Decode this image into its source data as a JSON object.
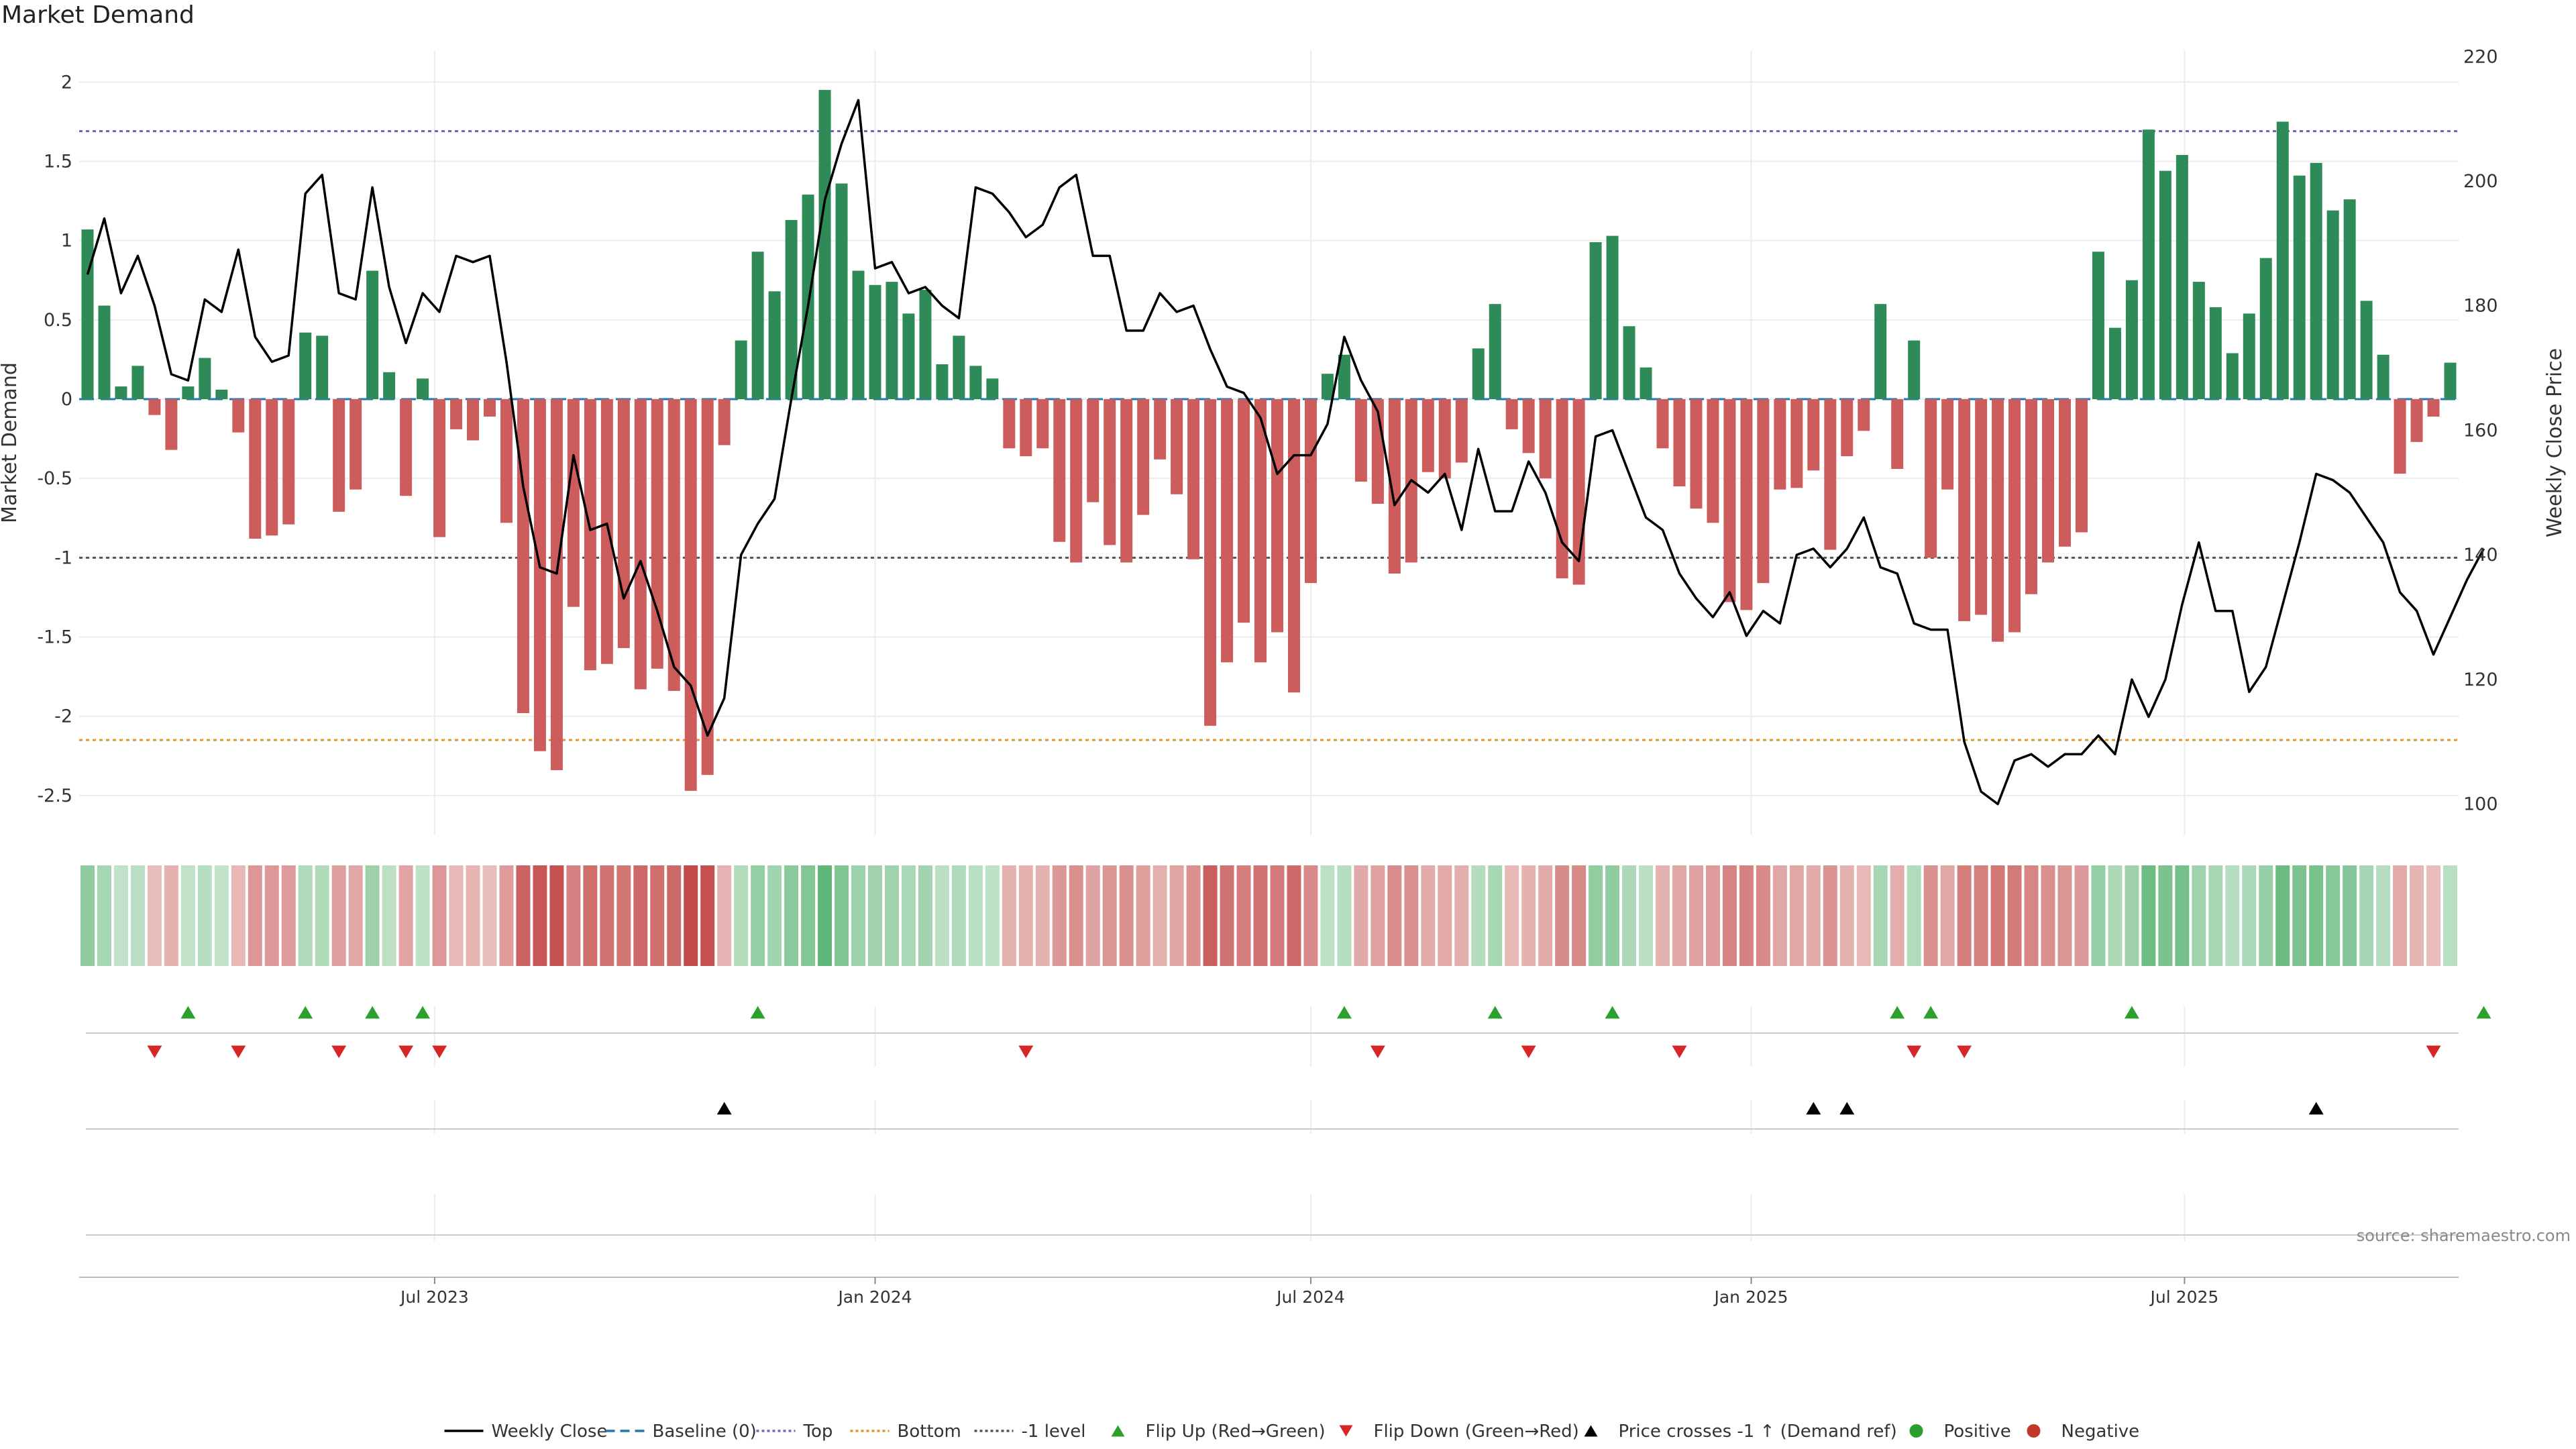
{
  "chart_data": {
    "type": "bar",
    "title": "Market Demand",
    "ylabel_left": "Market Demand",
    "ylabel_right": "Weekly Close Price",
    "ylim_left": [
      -2.75,
      2.2
    ],
    "ylim_right": [
      95,
      221
    ],
    "yticks_left": [
      2,
      1.5,
      1,
      0.5,
      0,
      -0.5,
      -1,
      -1.5,
      -2,
      -2.5
    ],
    "yticks_left_labels": [
      "2",
      "1.5",
      "1",
      "0.5",
      "0",
      "-0.5",
      "-1",
      "-1.5",
      "-2",
      "-2.5"
    ],
    "yticks_right": [
      220,
      200,
      180,
      160,
      140,
      120,
      100
    ],
    "yticks_right_labels": [
      "220",
      "200",
      "180",
      "160",
      "140",
      "120",
      "100"
    ],
    "x_start": "2023-02-06",
    "x_step_days": 7,
    "xticks": [
      {
        "date": "2023-07-01",
        "label": "Jul 2023"
      },
      {
        "date": "2024-01-01",
        "label": "Jan 2024"
      },
      {
        "date": "2024-07-01",
        "label": "Jul 2024"
      },
      {
        "date": "2025-01-01",
        "label": "Jan 2025"
      },
      {
        "date": "2025-07-01",
        "label": "Jul 2025"
      }
    ],
    "reference_lines": {
      "top": 1.69,
      "bottom": -2.15,
      "minus_one": -1.0,
      "baseline": 0
    },
    "demand": [
      1.07,
      0.59,
      0.08,
      0.21,
      -0.1,
      -0.32,
      0.08,
      0.26,
      0.06,
      -0.21,
      -0.88,
      -0.86,
      -0.79,
      0.42,
      0.4,
      -0.71,
      -0.57,
      0.81,
      0.17,
      -0.61,
      0.13,
      -0.87,
      -0.19,
      -0.26,
      -0.11,
      -0.78,
      -1.98,
      -2.22,
      -2.34,
      -1.31,
      -1.71,
      -1.67,
      -1.57,
      -1.83,
      -1.7,
      -1.84,
      -2.47,
      -2.37,
      -0.29,
      0.37,
      0.93,
      0.68,
      1.13,
      1.29,
      1.95,
      1.36,
      0.81,
      0.72,
      0.74,
      0.54,
      0.69,
      0.22,
      0.4,
      0.21,
      0.13,
      -0.31,
      -0.36,
      -0.31,
      -0.9,
      -1.03,
      -0.65,
      -0.92,
      -1.03,
      -0.73,
      -0.38,
      -0.6,
      -1.01,
      -2.06,
      -1.66,
      -1.41,
      -1.66,
      -1.47,
      -1.85,
      -1.16,
      0.16,
      0.28,
      -0.52,
      -0.66,
      -1.1,
      -1.03,
      -0.46,
      -0.5,
      -0.4,
      0.32,
      0.6,
      -0.19,
      -0.34,
      -0.5,
      -1.13,
      -1.17,
      0.99,
      1.03,
      0.46,
      0.2,
      -0.31,
      -0.55,
      -0.69,
      -0.78,
      -1.28,
      -1.33,
      -1.16,
      -0.57,
      -0.56,
      -0.45,
      -0.95,
      -0.36,
      -0.2,
      0.6,
      -0.44,
      0.37,
      -1.0,
      -0.57,
      -1.4,
      -1.36,
      -1.53,
      -1.47,
      -1.23,
      -1.03,
      -0.93,
      -0.84,
      0.93,
      0.45,
      0.75,
      1.7,
      1.44,
      1.54,
      0.74,
      0.58,
      0.29,
      0.54,
      0.89,
      1.75,
      1.41,
      1.49,
      1.19,
      1.26,
      0.62,
      0.28,
      -0.47,
      -0.27,
      -0.11,
      0.23
    ],
    "weekly_close": [
      185,
      194,
      182,
      188,
      180,
      169,
      168,
      181,
      179,
      189,
      175,
      171,
      172,
      198,
      201,
      182,
      181,
      199,
      183,
      174,
      182,
      179,
      188,
      187,
      188,
      171,
      151,
      138,
      137,
      156,
      144,
      145,
      133,
      139,
      131,
      122,
      119,
      111,
      117,
      140,
      145,
      149,
      165,
      180,
      197,
      206,
      213,
      186,
      187,
      182,
      183,
      180,
      178,
      199,
      198,
      195,
      191,
      193,
      199,
      201,
      188,
      188,
      176,
      176,
      182,
      179,
      180,
      173,
      167,
      166,
      162,
      153,
      156,
      156,
      161,
      175,
      168,
      163,
      148,
      152,
      150,
      153,
      144,
      157,
      147,
      147,
      155,
      150,
      142,
      139,
      159,
      160,
      153,
      146,
      144,
      137,
      133,
      130,
      134,
      127,
      131,
      129,
      140,
      141,
      138,
      141,
      146,
      138,
      137,
      129,
      128,
      128,
      110,
      102,
      100,
      107,
      108,
      106,
      108,
      108,
      111,
      108,
      120,
      114,
      120,
      132,
      142,
      131,
      131,
      118,
      122,
      132,
      142,
      153,
      152,
      150,
      146,
      142,
      134,
      131,
      124,
      130,
      136,
      141
    ],
    "flip_up": [
      6,
      13,
      17,
      20,
      40,
      75,
      84,
      91,
      108,
      110,
      122,
      143
    ],
    "flip_down": [
      4,
      9,
      15,
      19,
      21,
      56,
      77,
      86,
      95,
      109,
      112,
      140
    ],
    "price_cross": [
      38,
      103,
      105,
      133
    ],
    "heat_labels": {
      "positive": "Positive",
      "negative": "Negative"
    },
    "legend": [
      "Weekly Close",
      "Baseline (0)",
      "Top",
      "Bottom",
      "-1 level",
      "Flip Up (Red→Green)",
      "Flip Down (Green→Red)",
      "Price crosses -1 ↑ (Demand ref)",
      "Positive",
      "Negative"
    ],
    "colors": {
      "positive_bar": "#2e8b57",
      "negative_bar": "#cd5c5c",
      "price_line": "#000000",
      "baseline": "#1f77b4",
      "top": "#7a5fc0",
      "bottom": "#e0952b",
      "minus_one": "#555555",
      "flip_up": "#2ca02c",
      "flip_down": "#d62728",
      "cross": "#000000",
      "positive_dot": "#2ca02c",
      "negative_dot": "#c0392b"
    },
    "source": "source: sharemaestro.com"
  }
}
